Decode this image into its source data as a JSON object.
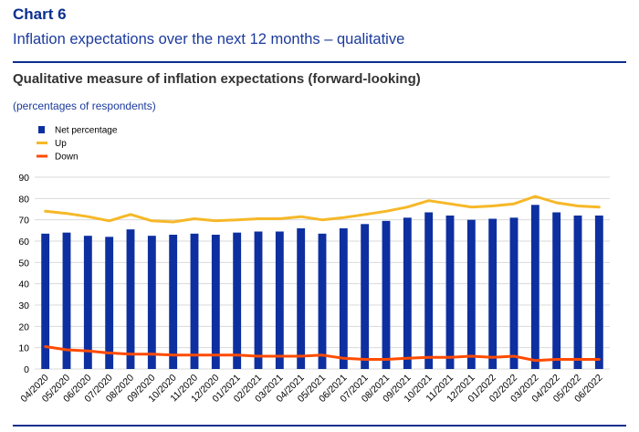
{
  "header": {
    "chart_label": "Chart 6",
    "chart_title": "Inflation expectations over the next 12 months – qualitative",
    "subtitle": "Qualitative measure of inflation expectations (forward-looking)",
    "unit_note": "(percentages of respondents)"
  },
  "chart_data": {
    "type": "bar",
    "title": "Qualitative measure of inflation expectations (forward-looking)",
    "ylabel": "(percentages of respondents)",
    "ylim": [
      0,
      90
    ],
    "yticks": [
      0,
      10,
      20,
      30,
      40,
      50,
      60,
      70,
      80,
      90
    ],
    "grid": true,
    "legend_position": "top-left",
    "categories": [
      "04/2020",
      "05/2020",
      "06/2020",
      "07/2020",
      "08/2020",
      "09/2020",
      "10/2020",
      "11/2020",
      "12/2020",
      "01/2021",
      "02/2021",
      "03/2021",
      "04/2021",
      "05/2021",
      "06/2021",
      "07/2021",
      "08/2021",
      "09/2021",
      "10/2021",
      "11/2021",
      "12/2021",
      "01/2022",
      "02/2022",
      "03/2022",
      "04/2022",
      "05/2022",
      "06/2022"
    ],
    "series": [
      {
        "name": "Net percentage",
        "type": "bar",
        "color": "#0d2fa0",
        "values": [
          63.5,
          64,
          62.5,
          62,
          65.5,
          62.5,
          63,
          63.5,
          63,
          64,
          64.5,
          64.5,
          66,
          63.5,
          66,
          68,
          69.5,
          71,
          73.5,
          72,
          70,
          70.5,
          71,
          77,
          73.5,
          72,
          72
        ]
      },
      {
        "name": "Up",
        "type": "line",
        "color": "#f6b828",
        "values": [
          74,
          73,
          71.5,
          69.5,
          72.5,
          69.5,
          69,
          70.5,
          69.5,
          70,
          70.5,
          70.5,
          71.5,
          70,
          71,
          72.5,
          74,
          76,
          79,
          77.5,
          76,
          76.5,
          77.5,
          81,
          78,
          76.5,
          76
        ]
      },
      {
        "name": "Down",
        "type": "line",
        "color": "#ff4b00",
        "values": [
          10.5,
          9,
          8.5,
          7.5,
          7,
          7,
          6.5,
          6.5,
          6.5,
          6.5,
          6,
          6,
          6,
          6.5,
          5,
          4.5,
          4.5,
          5,
          5.5,
          5.5,
          6,
          5.5,
          6,
          4,
          4.5,
          4.5,
          4.5
        ]
      }
    ]
  }
}
